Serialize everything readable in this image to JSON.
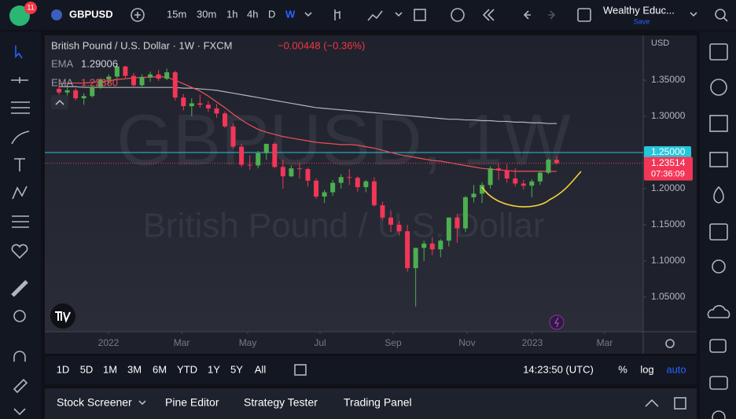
{
  "top_bar": {
    "badge": "11",
    "symbol": "GBPUSD",
    "intervals": [
      "15m",
      "30m",
      "1h",
      "4h",
      "D",
      "W"
    ],
    "layout_name": "Wealthy Educ...",
    "save": "Save"
  },
  "legend": {
    "title": "British Pound / U.S. Dollar · 1W · FXCM",
    "change": "−0.00448 (−0.36%)"
  },
  "watermark": {
    "symbol": "GBPUSD, 1W",
    "description": "British Pound / U.S. Dollar"
  },
  "chart_data": {
    "type": "candlestick",
    "currency": "USD",
    "up_color": "#4caf50",
    "down_color": "#f23658",
    "xlim": [
      -1.71,
      70.43
    ],
    "ylim": [
      1.002,
      1.412
    ],
    "xticks": [
      {
        "value": 5.97,
        "label": "2022"
      },
      {
        "value": 14.79,
        "label": "Mar"
      },
      {
        "value": 22.75,
        "label": "May"
      },
      {
        "value": 31.47,
        "label": "Jul"
      },
      {
        "value": 40.28,
        "label": "Sep"
      },
      {
        "value": 49.19,
        "label": "Nov"
      },
      {
        "value": 57.06,
        "label": "2023"
      },
      {
        "value": 65.78,
        "label": "Mar"
      }
    ],
    "yticks": [
      {
        "value": 1.05,
        "label": "1.05000"
      },
      {
        "value": 1.1,
        "label": "1.10000"
      },
      {
        "value": 1.15,
        "label": "1.15000"
      },
      {
        "value": 1.2,
        "label": "1.20000"
      },
      {
        "value": 1.3,
        "label": "1.30000"
      },
      {
        "value": 1.35,
        "label": "1.35000"
      }
    ],
    "grid": false,
    "hline": {
      "value": 1.25,
      "label": "1.25000",
      "color": "#26c6da"
    },
    "last": 1.23514,
    "countdown": "07:36:09",
    "ohlc": [
      [
        1.338,
        1.343,
        1.33,
        1.333
      ],
      [
        1.333,
        1.34,
        1.328,
        1.336
      ],
      [
        1.336,
        1.339,
        1.322,
        1.325
      ],
      [
        1.325,
        1.332,
        1.316,
        1.328
      ],
      [
        1.328,
        1.342,
        1.326,
        1.34
      ],
      [
        1.34,
        1.353,
        1.338,
        1.351
      ],
      [
        1.351,
        1.358,
        1.344,
        1.355
      ],
      [
        1.355,
        1.374,
        1.352,
        1.369
      ],
      [
        1.369,
        1.37,
        1.352,
        1.356
      ],
      [
        1.356,
        1.36,
        1.34,
        1.343
      ],
      [
        1.343,
        1.358,
        1.341,
        1.354
      ],
      [
        1.354,
        1.362,
        1.348,
        1.358
      ],
      [
        1.358,
        1.364,
        1.349,
        1.352
      ],
      [
        1.352,
        1.366,
        1.35,
        1.361
      ],
      [
        1.361,
        1.363,
        1.322,
        1.326
      ],
      [
        1.326,
        1.331,
        1.308,
        1.314
      ],
      [
        1.314,
        1.325,
        1.3,
        1.318
      ],
      [
        1.318,
        1.33,
        1.312,
        1.316
      ],
      [
        1.316,
        1.321,
        1.306,
        1.311
      ],
      [
        1.311,
        1.317,
        1.298,
        1.304
      ],
      [
        1.304,
        1.307,
        1.284,
        1.286
      ],
      [
        1.286,
        1.29,
        1.255,
        1.258
      ],
      [
        1.258,
        1.262,
        1.23,
        1.233
      ],
      [
        1.233,
        1.246,
        1.226,
        1.232
      ],
      [
        1.232,
        1.252,
        1.228,
        1.249
      ],
      [
        1.249,
        1.262,
        1.24,
        1.262
      ],
      [
        1.262,
        1.264,
        1.228,
        1.23
      ],
      [
        1.23,
        1.24,
        1.2,
        1.217
      ],
      [
        1.217,
        1.232,
        1.216,
        1.228
      ],
      [
        1.228,
        1.236,
        1.214,
        1.227
      ],
      [
        1.227,
        1.229,
        1.203,
        1.211
      ],
      [
        1.211,
        1.214,
        1.186,
        1.189
      ],
      [
        1.189,
        1.198,
        1.18,
        1.195
      ],
      [
        1.195,
        1.212,
        1.19,
        1.208
      ],
      [
        1.208,
        1.22,
        1.2,
        1.216
      ],
      [
        1.216,
        1.227,
        1.205,
        1.215
      ],
      [
        1.215,
        1.217,
        1.196,
        1.202
      ],
      [
        1.202,
        1.212,
        1.195,
        1.21
      ],
      [
        1.21,
        1.216,
        1.175,
        1.177
      ],
      [
        1.177,
        1.182,
        1.157,
        1.16
      ],
      [
        1.16,
        1.17,
        1.14,
        1.15
      ],
      [
        1.15,
        1.155,
        1.135,
        1.141
      ],
      [
        1.141,
        1.15,
        1.085,
        1.09
      ],
      [
        1.09,
        1.118,
        1.037,
        1.118
      ],
      [
        1.118,
        1.128,
        1.1,
        1.124
      ],
      [
        1.124,
        1.133,
        1.108,
        1.116
      ],
      [
        1.116,
        1.13,
        1.105,
        1.128
      ],
      [
        1.128,
        1.16,
        1.12,
        1.16
      ],
      [
        1.16,
        1.165,
        1.125,
        1.145
      ],
      [
        1.145,
        1.19,
        1.14,
        1.188
      ],
      [
        1.188,
        1.205,
        1.181,
        1.193
      ],
      [
        1.193,
        1.209,
        1.18,
        1.205
      ],
      [
        1.205,
        1.231,
        1.2,
        1.228
      ],
      [
        1.228,
        1.235,
        1.212,
        1.225
      ],
      [
        1.225,
        1.234,
        1.208,
        1.214
      ],
      [
        1.214,
        1.228,
        1.203,
        1.207
      ],
      [
        1.207,
        1.212,
        1.199,
        1.204
      ],
      [
        1.204,
        1.213,
        1.188,
        1.21
      ],
      [
        1.21,
        1.225,
        1.205,
        1.222
      ],
      [
        1.222,
        1.242,
        1.22,
        1.24
      ],
      [
        1.24,
        1.245,
        1.233,
        1.23514
      ]
    ],
    "series": [
      {
        "name": "EMA",
        "color": "#b2b5be",
        "legend_value": "1.29006",
        "values": [
          1.341,
          1.341,
          1.341,
          1.34,
          1.34,
          1.34,
          1.34,
          1.34,
          1.34,
          1.34,
          1.34,
          1.34,
          1.34,
          1.34,
          1.34,
          1.339,
          1.339,
          1.338,
          1.337,
          1.336,
          1.334,
          1.332,
          1.33,
          1.328,
          1.326,
          1.324,
          1.322,
          1.32,
          1.318,
          1.316,
          1.314,
          1.312,
          1.311,
          1.31,
          1.309,
          1.308,
          1.307,
          1.306,
          1.305,
          1.304,
          1.303,
          1.302,
          1.301,
          1.3,
          1.299,
          1.298,
          1.297,
          1.296,
          1.296,
          1.295,
          1.295,
          1.294,
          1.294,
          1.293,
          1.293,
          1.292,
          1.292,
          1.291,
          1.291,
          1.29,
          1.29006
        ]
      },
      {
        "name": "EMA",
        "color": "#f0505a",
        "legend_value": "1.22380",
        "values": [
          1.345,
          1.346,
          1.346,
          1.346,
          1.347,
          1.348,
          1.349,
          1.351,
          1.352,
          1.353,
          1.354,
          1.354,
          1.355,
          1.354,
          1.35,
          1.345,
          1.34,
          1.335,
          1.328,
          1.32,
          1.312,
          1.303,
          1.295,
          1.288,
          1.282,
          1.278,
          1.275,
          1.272,
          1.27,
          1.268,
          1.266,
          1.264,
          1.263,
          1.262,
          1.261,
          1.261,
          1.26,
          1.258,
          1.256,
          1.253,
          1.25,
          1.247,
          1.245,
          1.243,
          1.241,
          1.239,
          1.238,
          1.236,
          1.234,
          1.232,
          1.23,
          1.228,
          1.227,
          1.226,
          1.225,
          1.224,
          1.224,
          1.224,
          1.224,
          1.224,
          1.2238
        ]
      }
    ]
  },
  "range_bar": {
    "ranges": [
      "1D",
      "5D",
      "1M",
      "3M",
      "6M",
      "YTD",
      "1Y",
      "5Y",
      "All"
    ],
    "clock": "14:23:50 (UTC)",
    "options": [
      "%",
      "log",
      "auto"
    ]
  },
  "bottom_panel": {
    "tabs": [
      "Stock Screener",
      "Pine Editor",
      "Strategy Tester",
      "Trading Panel"
    ]
  }
}
